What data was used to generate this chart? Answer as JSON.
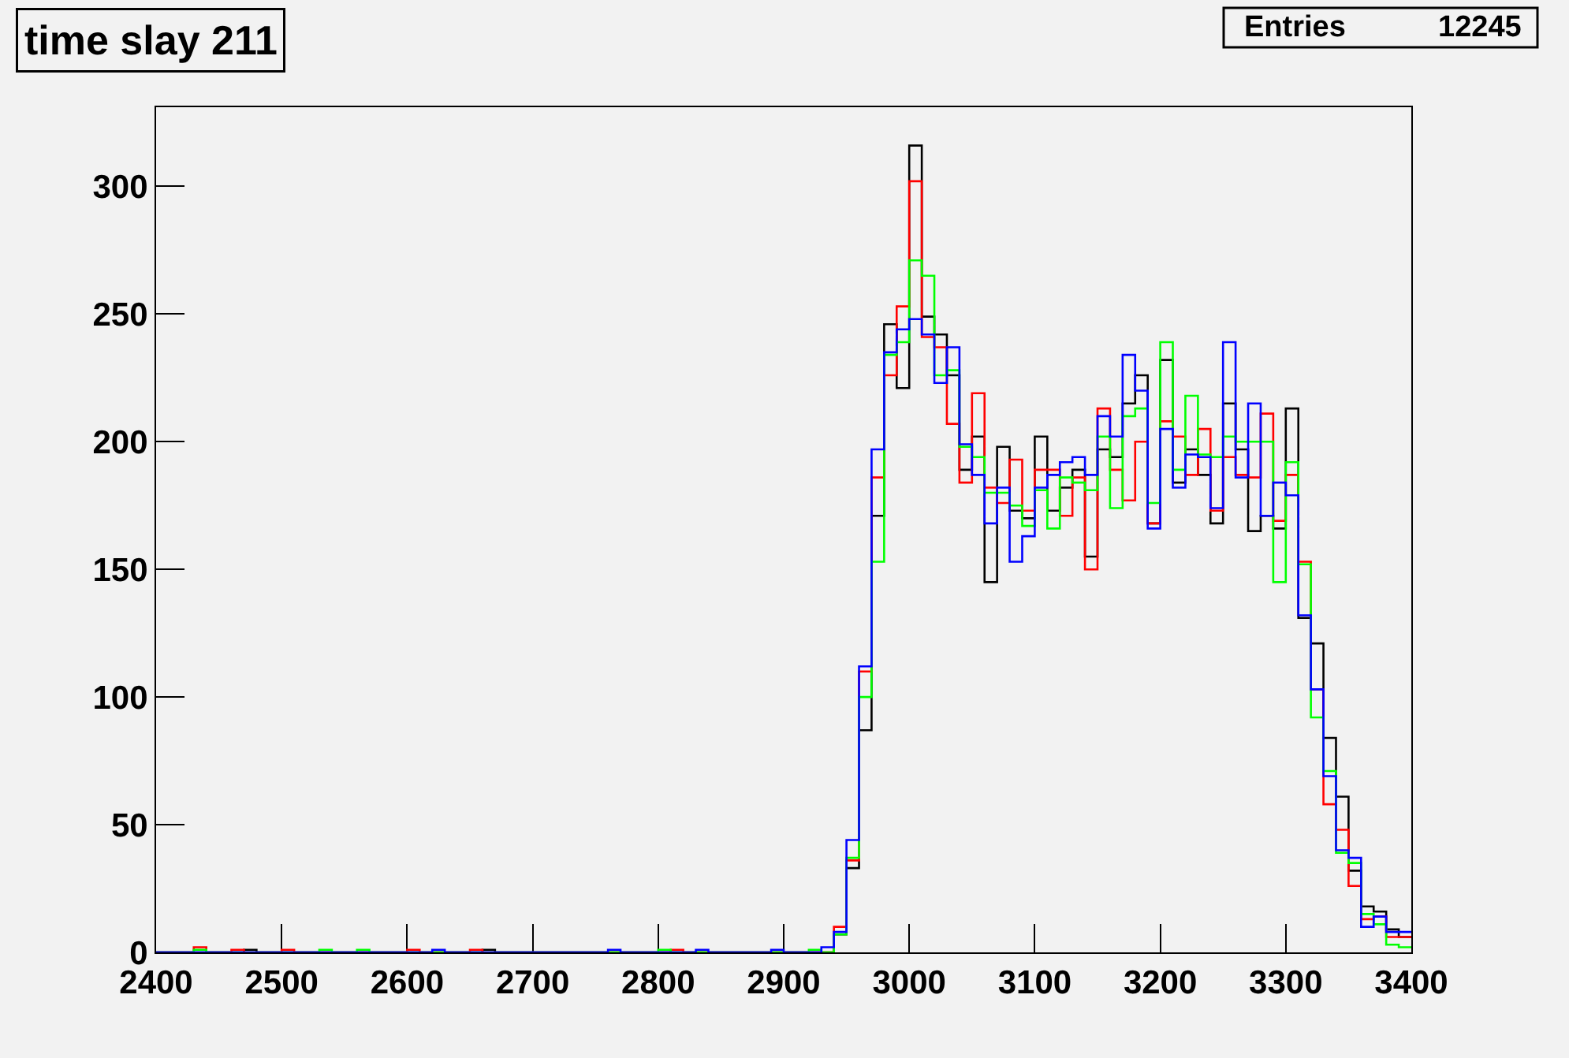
{
  "chart_data": {
    "type": "histogram",
    "title": "time slay 211",
    "annotations": [
      "Entries",
      "12245"
    ],
    "bins": [
      2400,
      2410,
      2420,
      2430,
      2440,
      2450,
      2460,
      2470,
      2480,
      2490,
      2500,
      2510,
      2520,
      2530,
      2540,
      2550,
      2560,
      2570,
      2580,
      2590,
      2600,
      2610,
      2620,
      2630,
      2640,
      2650,
      2660,
      2670,
      2680,
      2690,
      2700,
      2710,
      2720,
      2730,
      2740,
      2750,
      2760,
      2770,
      2780,
      2790,
      2800,
      2810,
      2820,
      2830,
      2840,
      2850,
      2860,
      2870,
      2880,
      2890,
      2900,
      2910,
      2920,
      2930,
      2940,
      2950,
      2960,
      2970,
      2980,
      2990,
      3000,
      3010,
      3020,
      3030,
      3040,
      3050,
      3060,
      3070,
      3080,
      3090,
      3100,
      3110,
      3120,
      3130,
      3140,
      3150,
      3160,
      3170,
      3180,
      3190,
      3200,
      3210,
      3220,
      3230,
      3240,
      3250,
      3260,
      3270,
      3280,
      3290,
      3300,
      3310,
      3320,
      3330,
      3340,
      3350,
      3360,
      3370,
      3380,
      3390,
      3400
    ],
    "series": [
      {
        "color": "#000000",
        "values": [
          0,
          0,
          0,
          0,
          0,
          0,
          0,
          1,
          0,
          0,
          0,
          0,
          0,
          0,
          0,
          0,
          0,
          0,
          0,
          0,
          0,
          0,
          0,
          0,
          0,
          0,
          1,
          0,
          0,
          0,
          0,
          0,
          0,
          0,
          0,
          0,
          0,
          0,
          0,
          0,
          0,
          0,
          0,
          0,
          0,
          0,
          0,
          0,
          0,
          0,
          0,
          0,
          0,
          0,
          7,
          33,
          87,
          171,
          246,
          221,
          316,
          249,
          242,
          226,
          189,
          202,
          145,
          198,
          173,
          170,
          202,
          173,
          182,
          189,
          155,
          197,
          194,
          215,
          226,
          168,
          232,
          184,
          197,
          187,
          168,
          215,
          197,
          165,
          171,
          166,
          213,
          131,
          121,
          84,
          61,
          32,
          18,
          16,
          9,
          6
        ]
      },
      {
        "color": "#ff0000",
        "values": [
          0,
          0,
          0,
          2,
          0,
          0,
          1,
          0,
          0,
          0,
          1,
          0,
          0,
          0,
          0,
          0,
          0,
          0,
          0,
          0,
          1,
          0,
          0,
          0,
          0,
          1,
          0,
          0,
          0,
          0,
          0,
          0,
          0,
          0,
          0,
          0,
          0,
          0,
          0,
          0,
          0,
          1,
          0,
          0,
          0,
          0,
          0,
          0,
          0,
          0,
          0,
          0,
          0,
          0,
          10,
          36,
          110,
          186,
          226,
          253,
          302,
          241,
          237,
          207,
          184,
          219,
          182,
          176,
          193,
          173,
          189,
          189,
          171,
          186,
          150,
          213,
          189,
          177,
          200,
          168,
          208,
          202,
          187,
          205,
          173,
          194,
          187,
          186,
          211,
          169,
          187,
          153,
          103,
          58,
          48,
          26,
          13,
          14,
          6,
          6
        ]
      },
      {
        "color": "#00ff00",
        "values": [
          0,
          0,
          0,
          1,
          0,
          0,
          0,
          0,
          0,
          0,
          0,
          0,
          0,
          1,
          0,
          0,
          1,
          0,
          0,
          0,
          0,
          0,
          0,
          0,
          0,
          0,
          0,
          0,
          0,
          0,
          0,
          0,
          0,
          0,
          0,
          0,
          0,
          0,
          0,
          0,
          1,
          0,
          0,
          0,
          0,
          0,
          0,
          0,
          0,
          0,
          0,
          0,
          1,
          0,
          7,
          37,
          100,
          153,
          234,
          239,
          271,
          265,
          226,
          228,
          198,
          194,
          180,
          180,
          175,
          167,
          181,
          166,
          186,
          184,
          181,
          202,
          174,
          210,
          213,
          176,
          239,
          189,
          218,
          195,
          194,
          202,
          200,
          200,
          200,
          145,
          192,
          152,
          92,
          71,
          39,
          35,
          15,
          11,
          3,
          2
        ]
      },
      {
        "color": "#0000ff",
        "values": [
          0,
          0,
          0,
          0,
          0,
          0,
          0,
          0,
          0,
          0,
          0,
          0,
          0,
          0,
          0,
          0,
          0,
          0,
          0,
          0,
          0,
          0,
          1,
          0,
          0,
          0,
          0,
          0,
          0,
          0,
          0,
          0,
          0,
          0,
          0,
          0,
          1,
          0,
          0,
          0,
          0,
          0,
          0,
          1,
          0,
          0,
          0,
          0,
          0,
          1,
          0,
          0,
          0,
          2,
          8,
          44,
          112,
          197,
          235,
          244,
          248,
          242,
          223,
          237,
          199,
          187,
          168,
          182,
          153,
          163,
          182,
          187,
          192,
          194,
          187,
          210,
          202,
          234,
          220,
          166,
          205,
          182,
          195,
          194,
          174,
          239,
          186,
          215,
          171,
          184,
          179,
          132,
          103,
          69,
          40,
          37,
          10,
          14,
          8,
          8
        ]
      }
    ],
    "xlim": [
      2400,
      3400
    ],
    "xticks": [
      2400,
      2500,
      2600,
      2700,
      2800,
      2900,
      3000,
      3100,
      3200,
      3300,
      3400
    ],
    "ylim": [
      0,
      331
    ],
    "yticks": [
      0,
      50,
      100,
      150,
      200,
      250,
      300
    ],
    "grid": false
  }
}
